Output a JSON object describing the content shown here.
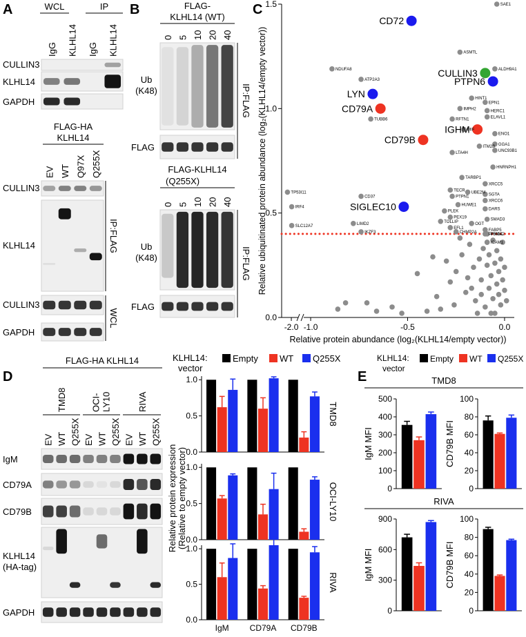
{
  "panel_labels": [
    "A",
    "B",
    "C",
    "D",
    "E"
  ],
  "panel_a": {
    "top_groups": [
      "WCL",
      "IP"
    ],
    "top_lanes": [
      "IgG",
      "KLHL14",
      "IgG",
      "KLHL14"
    ],
    "top_rows": [
      "CULLIN3",
      "KLHL14",
      "GAPDH"
    ],
    "construct": [
      "FLAG-HA",
      "KLHL14"
    ],
    "lanes": [
      "EV",
      "WT",
      "Q97X",
      "Q255X"
    ],
    "rows": [
      "CULLIN3",
      "KLHL14",
      "CULLIN3",
      "GAPDH"
    ],
    "fractions": [
      "IP:FLAG",
      "WCL"
    ]
  },
  "panel_b": {
    "top_construct": [
      "FLAG-",
      "KLHL14 (WT)"
    ],
    "lanes": [
      "0",
      "5",
      "10",
      "20",
      "40"
    ],
    "rows": [
      "Ub",
      "(K48)",
      "FLAG"
    ],
    "fraction": "IP:FLAG",
    "bottom_construct": [
      "FLAG-KLHL14",
      "(Q255X)"
    ]
  },
  "panel_d": {
    "construct": "FLAG-HA KLHL14",
    "cell_line_labels": [
      "TMD8",
      "OCI-",
      "LY10",
      "RIVA"
    ],
    "lanes": [
      "EV",
      "WT",
      "Q255X"
    ],
    "rows": [
      "IgM",
      "CD79A",
      "CD79B",
      "KLHL14",
      "(HA-tag)",
      "GAPDH"
    ],
    "legend_title": [
      "KLHL14:",
      "vector"
    ],
    "y_label": [
      "Relative protein expression",
      "(Relative to empty vector)"
    ]
  },
  "panel_e": {
    "legend_title": [
      "KLHL14:",
      "vector"
    ],
    "groups": [
      "TMD8",
      "RIVA"
    ]
  },
  "chart_data": [
    {
      "type": "scatter",
      "x_label": "Relative protein abundance (log₂(KLHL14/empty vector))",
      "y_label": "Relative ubiquitinated protein abundance (log₂(KLHL14/empty vector))",
      "x": [
        -0.04,
        -0.48,
        -0.23,
        -0.89,
        -0.05,
        -0.1,
        -0.74,
        -0.06,
        -0.68,
        -0.17,
        -0.1,
        -0.23,
        -0.64,
        -0.09,
        -0.09,
        -0.27,
        -0.69,
        -0.14,
        -0.21,
        -0.05,
        -0.42,
        -0.05,
        -0.13,
        -0.05,
        -0.27,
        -0.06,
        -0.22,
        -0.1,
        -0.28,
        -2.02,
        -0.19,
        -0.1,
        -0.27,
        -0.74,
        -0.1,
        -0.24,
        -0.52,
        -1.98,
        -0.1,
        -0.31,
        -0.28,
        -0.09,
        -0.33,
        -0.78,
        -0.17,
        -1.98,
        -0.28,
        -0.1,
        -0.74,
        -0.25,
        -0.1,
        -0.09,
        -0.09,
        -0.86,
        -0.82,
        -0.71,
        -0.66,
        -0.58,
        -0.53,
        -0.4,
        -0.35,
        -0.33,
        -0.28,
        -0.25,
        -0.22,
        -0.2,
        -0.18,
        -0.16,
        -0.15,
        -0.13,
        -0.12,
        -0.11,
        -0.1,
        -0.09,
        -0.08,
        -0.08,
        -0.07,
        -0.06,
        -0.06,
        -0.05,
        -0.05,
        -0.04,
        -0.04,
        -0.03,
        -0.03,
        -0.02,
        -0.02,
        -0.01,
        -0.01,
        0.0,
        0.0,
        -0.14,
        -0.19,
        -0.23,
        -0.3,
        -0.26,
        -0.12,
        -0.07,
        0.01,
        -0.09,
        -0.17,
        -0.45,
        -0.37
      ],
      "y": [
        1.5,
        1.42,
        1.27,
        1.19,
        1.19,
        1.17,
        1.14,
        1.13,
        1.07,
        1.05,
        1.03,
        1.0,
        1.0,
        0.99,
        0.96,
        0.95,
        0.95,
        0.9,
        0.9,
        0.88,
        0.85,
        0.83,
        0.82,
        0.8,
        0.79,
        0.72,
        0.67,
        0.64,
        0.61,
        0.6,
        0.6,
        0.59,
        0.58,
        0.58,
        0.56,
        0.54,
        0.53,
        0.53,
        0.52,
        0.51,
        0.48,
        0.47,
        0.46,
        0.45,
        0.45,
        0.44,
        0.43,
        0.42,
        0.41,
        0.41,
        0.4,
        0.4,
        0.36,
        0.04,
        0.07,
        0.07,
        0.03,
        0.05,
        0.02,
        0.03,
        0.1,
        0.04,
        0.17,
        0.22,
        0.3,
        0.12,
        0.35,
        0.24,
        0.08,
        0.28,
        0.18,
        0.33,
        0.05,
        0.25,
        0.14,
        0.3,
        0.2,
        0.09,
        0.37,
        0.26,
        0.02,
        0.16,
        0.32,
        0.11,
        0.22,
        0.06,
        0.28,
        0.18,
        0.36,
        0.13,
        0.24,
        0.02,
        0.19,
        0.38,
        0.27,
        0.06,
        0.11,
        0.02,
        0.08,
        0.36,
        0.14,
        0.21,
        0.29
      ],
      "labels": [
        "SAE1",
        "CD72",
        "ASMTL",
        "NDUFA8",
        "ALDH9A1",
        "CULLIN3",
        "ATP2A3",
        "PTPN6",
        "LYN",
        "HINT1",
        "EPN1",
        "IMPH2",
        "CD79A",
        "HERC1",
        "ELAVL1",
        "RFTN1",
        "TUBB6",
        "IGHM",
        "MIF",
        "ENO1",
        "CD79B",
        "GGA1",
        "ITM2B",
        "UNC93B1",
        "LTA4H",
        "HNRNPH1",
        "TARBP1",
        "XRCC5",
        "TECR",
        "TP53I11",
        "UBE2M",
        "SGTA",
        "PTPN1",
        "CD37",
        "XRCC6",
        "HUWE1",
        "SIGLEC10",
        "IRF4",
        "DARS",
        "PLEK",
        "PEX19",
        "SMAD3",
        "TOLLIP",
        "LIMD2",
        "OGT",
        "SLC12A7",
        "EFL1",
        "FABP5",
        "IKZF3",
        "CHMP2A",
        "PRKDC",
        "PSMA2",
        "ICAM1",
        null,
        null,
        null,
        null,
        null,
        null,
        null,
        null,
        null,
        null,
        null,
        null,
        null,
        null,
        null,
        null,
        null,
        null,
        null,
        null,
        null,
        null,
        null,
        null,
        null,
        null,
        null,
        null,
        null,
        null,
        null,
        null,
        null,
        null,
        null,
        null,
        null,
        null,
        null,
        null,
        null,
        null,
        null,
        null,
        null,
        null,
        null,
        null,
        null,
        null
      ],
      "base_color": "#8c8c8c",
      "colors": [
        "#8c8c8c",
        "#1a1aee",
        "#8c8c8c",
        "#8c8c8c",
        "#8c8c8c",
        "#33a532",
        "#8c8c8c",
        "#1a1aee",
        "#1a1aee",
        "#8c8c8c",
        "#8c8c8c",
        "#8c8c8c",
        "#ee3322",
        "#8c8c8c",
        "#8c8c8c",
        "#8c8c8c",
        "#8c8c8c",
        "#ee3322",
        "#8c8c8c",
        "#8c8c8c",
        "#ee3322",
        "#8c8c8c",
        "#8c8c8c",
        "#8c8c8c",
        "#8c8c8c",
        "#8c8c8c",
        "#8c8c8c",
        "#8c8c8c",
        "#8c8c8c",
        "#8c8c8c",
        "#8c8c8c",
        "#8c8c8c",
        "#8c8c8c",
        "#8c8c8c",
        "#8c8c8c",
        "#8c8c8c",
        "#1a1aee",
        "#8c8c8c",
        "#8c8c8c",
        "#8c8c8c",
        "#8c8c8c",
        "#8c8c8c",
        "#8c8c8c",
        "#8c8c8c",
        "#8c8c8c",
        "#8c8c8c",
        "#8c8c8c",
        "#8c8c8c",
        "#8c8c8c",
        "#8c8c8c",
        "#8c8c8c",
        "#8c8c8c",
        "#8c8c8c",
        "#8c8c8c",
        "#8c8c8c",
        "#8c8c8c",
        "#8c8c8c",
        "#8c8c8c",
        "#8c8c8c",
        "#8c8c8c",
        "#8c8c8c",
        "#8c8c8c",
        "#8c8c8c",
        "#8c8c8c",
        "#8c8c8c",
        "#8c8c8c",
        "#8c8c8c",
        "#8c8c8c",
        "#8c8c8c",
        "#8c8c8c",
        "#8c8c8c",
        "#8c8c8c",
        "#8c8c8c",
        "#8c8c8c",
        "#8c8c8c",
        "#8c8c8c",
        "#8c8c8c",
        "#8c8c8c",
        "#8c8c8c",
        "#8c8c8c",
        "#8c8c8c",
        "#8c8c8c",
        "#8c8c8c",
        "#8c8c8c",
        "#8c8c8c",
        "#8c8c8c",
        "#8c8c8c",
        "#8c8c8c",
        "#8c8c8c",
        "#8c8c8c",
        "#8c8c8c",
        "#8c8c8c",
        "#8c8c8c",
        "#8c8c8c",
        "#8c8c8c",
        "#8c8c8c",
        "#8c8c8c",
        "#8c8c8c",
        "#8c8c8c",
        "#8c8c8c",
        "#8c8c8c",
        "#8c8c8c",
        "#8c8c8c"
      ],
      "xlim": [
        -2.05,
        0.05
      ],
      "x_break": [
        -2.0,
        -1.0
      ],
      "ylim": [
        0,
        1.5
      ],
      "xticks": [
        {
          "value": -2,
          "label": "-2.0"
        },
        {
          "value": -1,
          "label": "-1.0"
        },
        {
          "value": -0.5,
          "label": "-0.5"
        },
        {
          "value": 0,
          "label": "0.0"
        }
      ],
      "yticks": [
        {
          "value": 0,
          "label": "0.0"
        },
        0.5,
        {
          "value": 1,
          "label": "1.0"
        },
        1.5
      ],
      "threshold": {
        "value": 0.4,
        "color": "#ee3322"
      }
    },
    {
      "type": "bar",
      "title": "TMD8",
      "ylim": [
        0,
        1.05
      ],
      "yticks": [
        {
          "value": 0,
          "label": "0.0"
        },
        0.5,
        {
          "value": 1,
          "label": "1.0"
        }
      ],
      "series": [
        {
          "name": "Empty",
          "color": "#000000",
          "values": [
            1,
            1,
            1
          ]
        },
        {
          "name": "WT",
          "color": "#ee3322",
          "values": [
            0.62,
            0.6,
            0.2
          ],
          "errors": [
            0.15,
            0.15,
            0.08
          ]
        },
        {
          "name": "Q255X",
          "color": "#1a2fee",
          "values": [
            0.86,
            1.02,
            0.77
          ],
          "errors": [
            0.15,
            0.02,
            0.06
          ]
        }
      ]
    },
    {
      "type": "bar",
      "title": "OCI-LY10",
      "ylim": [
        0,
        1.05
      ],
      "yticks": [
        {
          "value": 0,
          "label": "0.0"
        },
        0.5,
        {
          "value": 1,
          "label": "1.0"
        }
      ],
      "series": [
        {
          "name": "Empty",
          "color": "#000000",
          "values": [
            1,
            1,
            1
          ]
        },
        {
          "name": "WT",
          "color": "#ee3322",
          "values": [
            0.57,
            0.35,
            0.11
          ],
          "errors": [
            0.04,
            0.14,
            0.04
          ]
        },
        {
          "name": "Q255X",
          "color": "#1a2fee",
          "values": [
            0.89,
            0.7,
            0.83
          ],
          "errors": [
            0.02,
            0.22,
            0.04
          ]
        }
      ]
    },
    {
      "type": "bar",
      "title": "RIVA",
      "categories": [
        "IgM",
        "CD79A",
        "CD79B"
      ],
      "ylim": [
        0,
        1.05
      ],
      "yticks": [
        {
          "value": 0,
          "label": "0.0"
        },
        0.5,
        {
          "value": 1,
          "label": "1.0"
        }
      ],
      "series": [
        {
          "name": "Empty",
          "color": "#000000",
          "values": [
            1,
            1,
            1
          ]
        },
        {
          "name": "WT",
          "color": "#ee3322",
          "values": [
            0.6,
            0.44,
            0.31
          ],
          "errors": [
            0.2,
            0.04,
            0.02
          ]
        },
        {
          "name": "Q255X",
          "color": "#1a2fee",
          "values": [
            0.87,
            1.05,
            0.95
          ],
          "errors": [
            0.2,
            0.11,
            0.08
          ]
        }
      ]
    },
    {
      "type": "bar",
      "y_label": "IgM MFI",
      "ylim": [
        0,
        500
      ],
      "yticks": [
        0,
        100,
        200,
        300,
        400,
        500
      ],
      "series": [
        {
          "name": "Empty",
          "color": "#000000",
          "values": [
            355
          ],
          "errors": [
            20
          ]
        },
        {
          "name": "WT",
          "color": "#ee3322",
          "values": [
            270
          ],
          "errors": [
            18
          ]
        },
        {
          "name": "Q255X",
          "color": "#1a2fee",
          "values": [
            415
          ],
          "errors": [
            12
          ]
        }
      ]
    },
    {
      "type": "bar",
      "y_label": "CD79B MFI",
      "ylim": [
        0,
        100
      ],
      "yticks": [
        0,
        20,
        40,
        60,
        80,
        100
      ],
      "series": [
        {
          "name": "Empty",
          "color": "#000000",
          "values": [
            76
          ],
          "errors": [
            5
          ]
        },
        {
          "name": "WT",
          "color": "#ee3322",
          "values": [
            61
          ],
          "errors": [
            1
          ]
        },
        {
          "name": "Q255X",
          "color": "#1a2fee",
          "values": [
            79
          ],
          "errors": [
            3
          ]
        }
      ]
    },
    {
      "type": "bar",
      "y_label": "IgM MFI",
      "ylim": [
        0,
        900
      ],
      "yticks": [
        0,
        300,
        600,
        900
      ],
      "series": [
        {
          "name": "Empty",
          "color": "#000000",
          "values": [
            720
          ],
          "errors": [
            30
          ]
        },
        {
          "name": "WT",
          "color": "#ee3322",
          "values": [
            440
          ],
          "errors": [
            30
          ]
        },
        {
          "name": "Q255X",
          "color": "#1a2fee",
          "values": [
            870
          ],
          "errors": [
            15
          ]
        }
      ]
    },
    {
      "type": "bar",
      "y_label": "CD79B MFI",
      "ylim": [
        0,
        100
      ],
      "yticks": [
        0,
        20,
        40,
        60,
        80,
        100
      ],
      "series": [
        {
          "name": "Empty",
          "color": "#000000",
          "values": [
            89
          ],
          "errors": [
            2
          ]
        },
        {
          "name": "WT",
          "color": "#ee3322",
          "values": [
            38
          ],
          "errors": [
            1
          ]
        },
        {
          "name": "Q255X",
          "color": "#1a2fee",
          "values": [
            77
          ],
          "errors": [
            1
          ]
        }
      ]
    }
  ]
}
